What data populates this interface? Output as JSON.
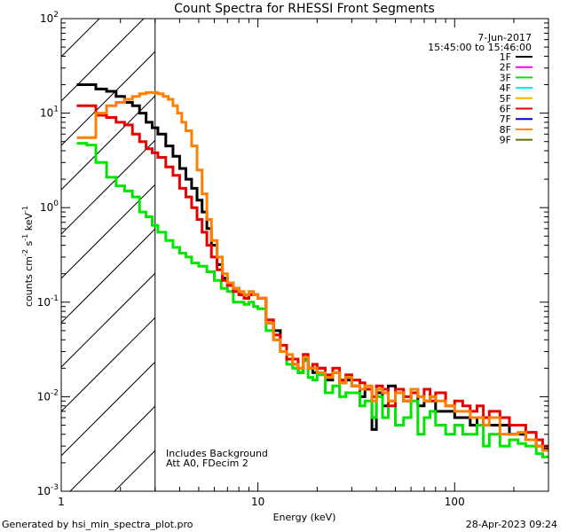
{
  "chart_data": {
    "type": "line",
    "title": "Count Spectra for RHESSI Front Segments",
    "xlabel": "Energy (keV)",
    "ylabel": "counts cm",
    "ylabel_units": {
      "cm_exp": "-2",
      "s_text": " s",
      "s_exp": "-1",
      "kev_text": " keV",
      "kev_exp": "-1"
    },
    "xscale": "log",
    "yscale": "log",
    "xlim": [
      1,
      300
    ],
    "ylim": [
      0.001,
      100
    ],
    "x_ticks": [
      {
        "value": 1,
        "label": "1"
      },
      {
        "value": 10,
        "label": "10"
      },
      {
        "value": 100,
        "label": "100"
      }
    ],
    "y_ticks": [
      {
        "value": 0.001,
        "base": "10",
        "exp": "-3"
      },
      {
        "value": 0.01,
        "base": "10",
        "exp": "-2"
      },
      {
        "value": 0.1,
        "base": "10",
        "exp": "-1"
      },
      {
        "value": 1,
        "base": "10",
        "exp": "0"
      },
      {
        "value": 10,
        "base": "10",
        "exp": "1"
      },
      {
        "value": 100,
        "base": "10",
        "exp": "2"
      }
    ],
    "hatched_region": {
      "xmin": 1,
      "xmax": 3
    },
    "date": "7-Jun-2017",
    "time_range": "15:45:00 to 15:46:00",
    "annotations": [
      "Includes Background",
      "Att A0, FDecim 2"
    ],
    "footer_left": "Generated by hsi_min_spectra_plot.pro",
    "footer_right": "28-Apr-2023 09:24",
    "legend_position": "top-right",
    "legend": [
      {
        "label": "1F",
        "color": "#000000"
      },
      {
        "label": "2F",
        "color": "#ff00ff"
      },
      {
        "label": "3F",
        "color": "#00e600"
      },
      {
        "label": "4F",
        "color": "#00e5ff"
      },
      {
        "label": "5F",
        "color": "#ffb000"
      },
      {
        "label": "6F",
        "color": "#e60000"
      },
      {
        "label": "7F",
        "color": "#0000cc"
      },
      {
        "label": "8F",
        "color": "#ff8000"
      },
      {
        "label": "9F",
        "color": "#6b6b00"
      }
    ],
    "series": [
      {
        "name": "1F",
        "color": "#000000",
        "points": [
          [
            1.2,
            20
          ],
          [
            1.35,
            20
          ],
          [
            1.5,
            18
          ],
          [
            1.7,
            17
          ],
          [
            1.9,
            15
          ],
          [
            2.1,
            13
          ],
          [
            2.3,
            12
          ],
          [
            2.5,
            10
          ],
          [
            2.7,
            8
          ],
          [
            2.9,
            7
          ],
          [
            3.1,
            6
          ],
          [
            3.4,
            4.5
          ],
          [
            3.7,
            3.5
          ],
          [
            4.0,
            2.6
          ],
          [
            4.3,
            2.0
          ],
          [
            4.6,
            1.6
          ],
          [
            4.9,
            1.2
          ],
          [
            5.2,
            0.9
          ],
          [
            5.5,
            0.6
          ],
          [
            5.8,
            0.4
          ],
          [
            6.2,
            0.25
          ],
          [
            6.6,
            0.18
          ],
          [
            7.0,
            0.15
          ],
          [
            7.5,
            0.14
          ],
          [
            8.0,
            0.12
          ],
          [
            8.5,
            0.11
          ],
          [
            9.0,
            0.12
          ],
          [
            9.5,
            0.12
          ],
          [
            10,
            0.11
          ],
          [
            11,
            0.06
          ],
          [
            12,
            0.05
          ],
          [
            13,
            0.03
          ],
          [
            14,
            0.025
          ],
          [
            15,
            0.022
          ],
          [
            16,
            0.018
          ],
          [
            17,
            0.025
          ],
          [
            18,
            0.02
          ],
          [
            19,
            0.018
          ],
          [
            20,
            0.02
          ],
          [
            22,
            0.015
          ],
          [
            24,
            0.018
          ],
          [
            26,
            0.014
          ],
          [
            28,
            0.015
          ],
          [
            30,
            0.013
          ],
          [
            33,
            0.01
          ],
          [
            35,
            0.012
          ],
          [
            38,
            0.0045
          ],
          [
            40,
            0.011
          ],
          [
            43,
            0.008
          ],
          [
            46,
            0.013
          ],
          [
            50,
            0.011
          ],
          [
            55,
            0.009
          ],
          [
            60,
            0.012
          ],
          [
            65,
            0.008
          ],
          [
            70,
            0.009
          ],
          [
            75,
            0.01
          ],
          [
            80,
            0.007
          ],
          [
            90,
            0.007
          ],
          [
            100,
            0.006
          ],
          [
            110,
            0.006
          ],
          [
            120,
            0.005
          ],
          [
            130,
            0.006
          ],
          [
            140,
            0.005
          ],
          [
            150,
            0.005
          ],
          [
            170,
            0.005
          ],
          [
            190,
            0.004
          ],
          [
            210,
            0.004
          ],
          [
            230,
            0.0035
          ],
          [
            260,
            0.003
          ],
          [
            280,
            0.0028
          ]
        ]
      },
      {
        "name": "3F",
        "color": "#00e600",
        "points": [
          [
            1.2,
            4.8
          ],
          [
            1.35,
            4.6
          ],
          [
            1.5,
            3.0
          ],
          [
            1.7,
            2.1
          ],
          [
            1.9,
            1.7
          ],
          [
            2.1,
            1.5
          ],
          [
            2.3,
            1.3
          ],
          [
            2.5,
            0.9
          ],
          [
            2.7,
            0.8
          ],
          [
            2.9,
            0.65
          ],
          [
            3.1,
            0.55
          ],
          [
            3.4,
            0.45
          ],
          [
            3.7,
            0.38
          ],
          [
            4.0,
            0.33
          ],
          [
            4.3,
            0.3
          ],
          [
            4.6,
            0.26
          ],
          [
            5.0,
            0.24
          ],
          [
            5.5,
            0.21
          ],
          [
            6.0,
            0.17
          ],
          [
            6.5,
            0.14
          ],
          [
            7.0,
            0.13
          ],
          [
            7.5,
            0.1
          ],
          [
            8.0,
            0.1
          ],
          [
            8.5,
            0.095
          ],
          [
            9.0,
            0.1
          ],
          [
            9.5,
            0.09
          ],
          [
            10,
            0.085
          ],
          [
            11,
            0.05
          ],
          [
            12,
            0.04
          ],
          [
            13,
            0.03
          ],
          [
            14,
            0.022
          ],
          [
            15,
            0.02
          ],
          [
            16,
            0.018
          ],
          [
            17,
            0.024
          ],
          [
            18,
            0.016
          ],
          [
            19,
            0.015
          ],
          [
            20,
            0.017
          ],
          [
            22,
            0.011
          ],
          [
            24,
            0.013
          ],
          [
            26,
            0.01
          ],
          [
            28,
            0.011
          ],
          [
            30,
            0.011
          ],
          [
            33,
            0.008
          ],
          [
            35,
            0.009
          ],
          [
            38,
            0.006
          ],
          [
            40,
            0.01
          ],
          [
            43,
            0.006
          ],
          [
            46,
            0.009
          ],
          [
            50,
            0.005
          ],
          [
            55,
            0.006
          ],
          [
            60,
            0.009
          ],
          [
            65,
            0.004
          ],
          [
            70,
            0.006
          ],
          [
            75,
            0.007
          ],
          [
            80,
            0.005
          ],
          [
            90,
            0.004
          ],
          [
            100,
            0.005
          ],
          [
            110,
            0.004
          ],
          [
            120,
            0.004
          ],
          [
            130,
            0.005
          ],
          [
            140,
            0.003
          ],
          [
            150,
            0.004
          ],
          [
            170,
            0.003
          ],
          [
            190,
            0.0035
          ],
          [
            210,
            0.0032
          ],
          [
            230,
            0.003
          ],
          [
            260,
            0.0025
          ],
          [
            280,
            0.0023
          ]
        ]
      },
      {
        "name": "6F",
        "color": "#e60000",
        "points": [
          [
            1.2,
            12
          ],
          [
            1.35,
            12
          ],
          [
            1.5,
            9.5
          ],
          [
            1.7,
            9.0
          ],
          [
            1.9,
            8.0
          ],
          [
            2.1,
            7.5
          ],
          [
            2.3,
            6.0
          ],
          [
            2.5,
            5.0
          ],
          [
            2.7,
            4.2
          ],
          [
            2.9,
            3.8
          ],
          [
            3.1,
            3.4
          ],
          [
            3.4,
            2.7
          ],
          [
            3.7,
            2.2
          ],
          [
            4.0,
            1.6
          ],
          [
            4.3,
            1.3
          ],
          [
            4.6,
            1.0
          ],
          [
            4.9,
            0.75
          ],
          [
            5.2,
            0.55
          ],
          [
            5.5,
            0.4
          ],
          [
            5.8,
            0.3
          ],
          [
            6.2,
            0.22
          ],
          [
            6.6,
            0.17
          ],
          [
            7.0,
            0.15
          ],
          [
            7.5,
            0.13
          ],
          [
            8.0,
            0.12
          ],
          [
            8.5,
            0.11
          ],
          [
            9.0,
            0.12
          ],
          [
            9.5,
            0.12
          ],
          [
            10,
            0.11
          ],
          [
            11,
            0.065
          ],
          [
            12,
            0.045
          ],
          [
            13,
            0.035
          ],
          [
            14,
            0.025
          ],
          [
            15,
            0.025
          ],
          [
            16,
            0.02
          ],
          [
            17,
            0.028
          ],
          [
            18,
            0.02
          ],
          [
            19,
            0.022
          ],
          [
            20,
            0.02
          ],
          [
            22,
            0.017
          ],
          [
            24,
            0.02
          ],
          [
            26,
            0.015
          ],
          [
            28,
            0.017
          ],
          [
            30,
            0.015
          ],
          [
            33,
            0.014
          ],
          [
            35,
            0.012
          ],
          [
            38,
            0.01
          ],
          [
            40,
            0.013
          ],
          [
            43,
            0.012
          ],
          [
            46,
            0.008
          ],
          [
            50,
            0.012
          ],
          [
            55,
            0.01
          ],
          [
            60,
            0.011
          ],
          [
            65,
            0.01
          ],
          [
            70,
            0.012
          ],
          [
            75,
            0.009
          ],
          [
            80,
            0.011
          ],
          [
            90,
            0.008
          ],
          [
            100,
            0.009
          ],
          [
            110,
            0.008
          ],
          [
            120,
            0.007
          ],
          [
            130,
            0.008
          ],
          [
            140,
            0.006
          ],
          [
            150,
            0.007
          ],
          [
            170,
            0.006
          ],
          [
            190,
            0.005
          ],
          [
            210,
            0.005
          ],
          [
            230,
            0.0042
          ],
          [
            260,
            0.0035
          ],
          [
            280,
            0.003
          ]
        ]
      },
      {
        "name": "8F",
        "color": "#ff8000",
        "points": [
          [
            1.2,
            5.5
          ],
          [
            1.35,
            5.5
          ],
          [
            1.5,
            10
          ],
          [
            1.7,
            12
          ],
          [
            1.9,
            13
          ],
          [
            2.1,
            14
          ],
          [
            2.3,
            15
          ],
          [
            2.5,
            16
          ],
          [
            2.7,
            16.5
          ],
          [
            2.9,
            16.5
          ],
          [
            3.1,
            16
          ],
          [
            3.3,
            15
          ],
          [
            3.5,
            14
          ],
          [
            3.7,
            12
          ],
          [
            3.9,
            10
          ],
          [
            4.1,
            8
          ],
          [
            4.3,
            6.5
          ],
          [
            4.6,
            4.5
          ],
          [
            4.9,
            2.5
          ],
          [
            5.2,
            1.4
          ],
          [
            5.5,
            0.75
          ],
          [
            5.8,
            0.45
          ],
          [
            6.2,
            0.3
          ],
          [
            6.6,
            0.2
          ],
          [
            7.0,
            0.16
          ],
          [
            7.5,
            0.14
          ],
          [
            8.0,
            0.13
          ],
          [
            8.5,
            0.12
          ],
          [
            9.0,
            0.13
          ],
          [
            9.5,
            0.12
          ],
          [
            10,
            0.11
          ],
          [
            11,
            0.06
          ],
          [
            12,
            0.04
          ],
          [
            13,
            0.03
          ],
          [
            14,
            0.028
          ],
          [
            15,
            0.022
          ],
          [
            16,
            0.02
          ],
          [
            17,
            0.026
          ],
          [
            18,
            0.02
          ],
          [
            19,
            0.02
          ],
          [
            20,
            0.018
          ],
          [
            22,
            0.016
          ],
          [
            24,
            0.018
          ],
          [
            26,
            0.014
          ],
          [
            28,
            0.016
          ],
          [
            30,
            0.013
          ],
          [
            33,
            0.012
          ],
          [
            35,
            0.013
          ],
          [
            38,
            0.009
          ],
          [
            40,
            0.012
          ],
          [
            43,
            0.011
          ],
          [
            46,
            0.009
          ],
          [
            50,
            0.011
          ],
          [
            55,
            0.009
          ],
          [
            60,
            0.012
          ],
          [
            65,
            0.01
          ],
          [
            70,
            0.009
          ],
          [
            75,
            0.01
          ],
          [
            80,
            0.009
          ],
          [
            90,
            0.008
          ],
          [
            100,
            0.007
          ],
          [
            110,
            0.007
          ],
          [
            120,
            0.006
          ],
          [
            130,
            0.006
          ],
          [
            140,
            0.005
          ],
          [
            150,
            0.006
          ],
          [
            170,
            0.004
          ],
          [
            190,
            0.004
          ],
          [
            210,
            0.0042
          ],
          [
            230,
            0.0035
          ],
          [
            260,
            0.003
          ],
          [
            280,
            0.0027
          ]
        ]
      }
    ]
  }
}
